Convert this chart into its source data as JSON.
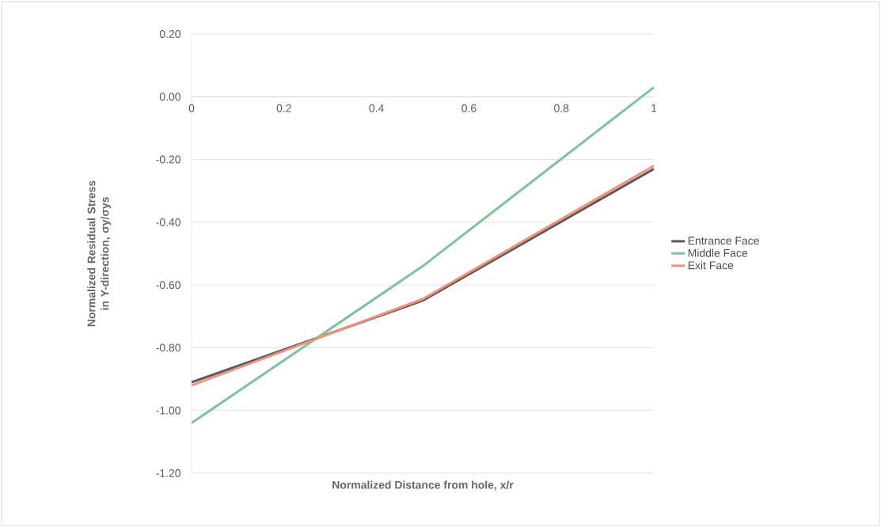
{
  "chart_data": {
    "type": "line",
    "xlabel": "Normalized Distance from hole, x/r",
    "ylabel": "Normalized Residual Stress in Y-direction, σy/σys",
    "xlim": [
      0,
      1
    ],
    "ylim": [
      -1.2,
      0.2
    ],
    "xticks": [
      0,
      0.2,
      0.4,
      0.6,
      0.8,
      1
    ],
    "yticks": [
      {
        "value": 0.2,
        "label": "0.20"
      },
      {
        "value": 0,
        "label": "0.00"
      },
      {
        "value": -0.2,
        "label": "-0.20"
      },
      {
        "value": -0.4,
        "label": "-0.40"
      },
      {
        "value": -0.6,
        "label": "-0.60"
      },
      {
        "value": -0.8,
        "label": "-0.80"
      },
      {
        "value": -1.0,
        "label": "-1.00"
      },
      {
        "value": -1.2,
        "label": "-1.20"
      }
    ],
    "grid": "y",
    "legend": "right",
    "marker": "none",
    "line_style": "solid",
    "x": [
      0,
      0.5,
      1
    ],
    "series": [
      {
        "name": "Entrance Face",
        "color": "#595959",
        "values": [
          -0.91,
          -0.65,
          -0.23
        ]
      },
      {
        "name": "Middle Face",
        "color": "#7cc39a",
        "values": [
          -1.04,
          -0.54,
          0.03
        ]
      },
      {
        "name": "Exit Face",
        "color": "#f0917b",
        "values": [
          -0.92,
          -0.645,
          -0.22
        ]
      }
    ]
  }
}
